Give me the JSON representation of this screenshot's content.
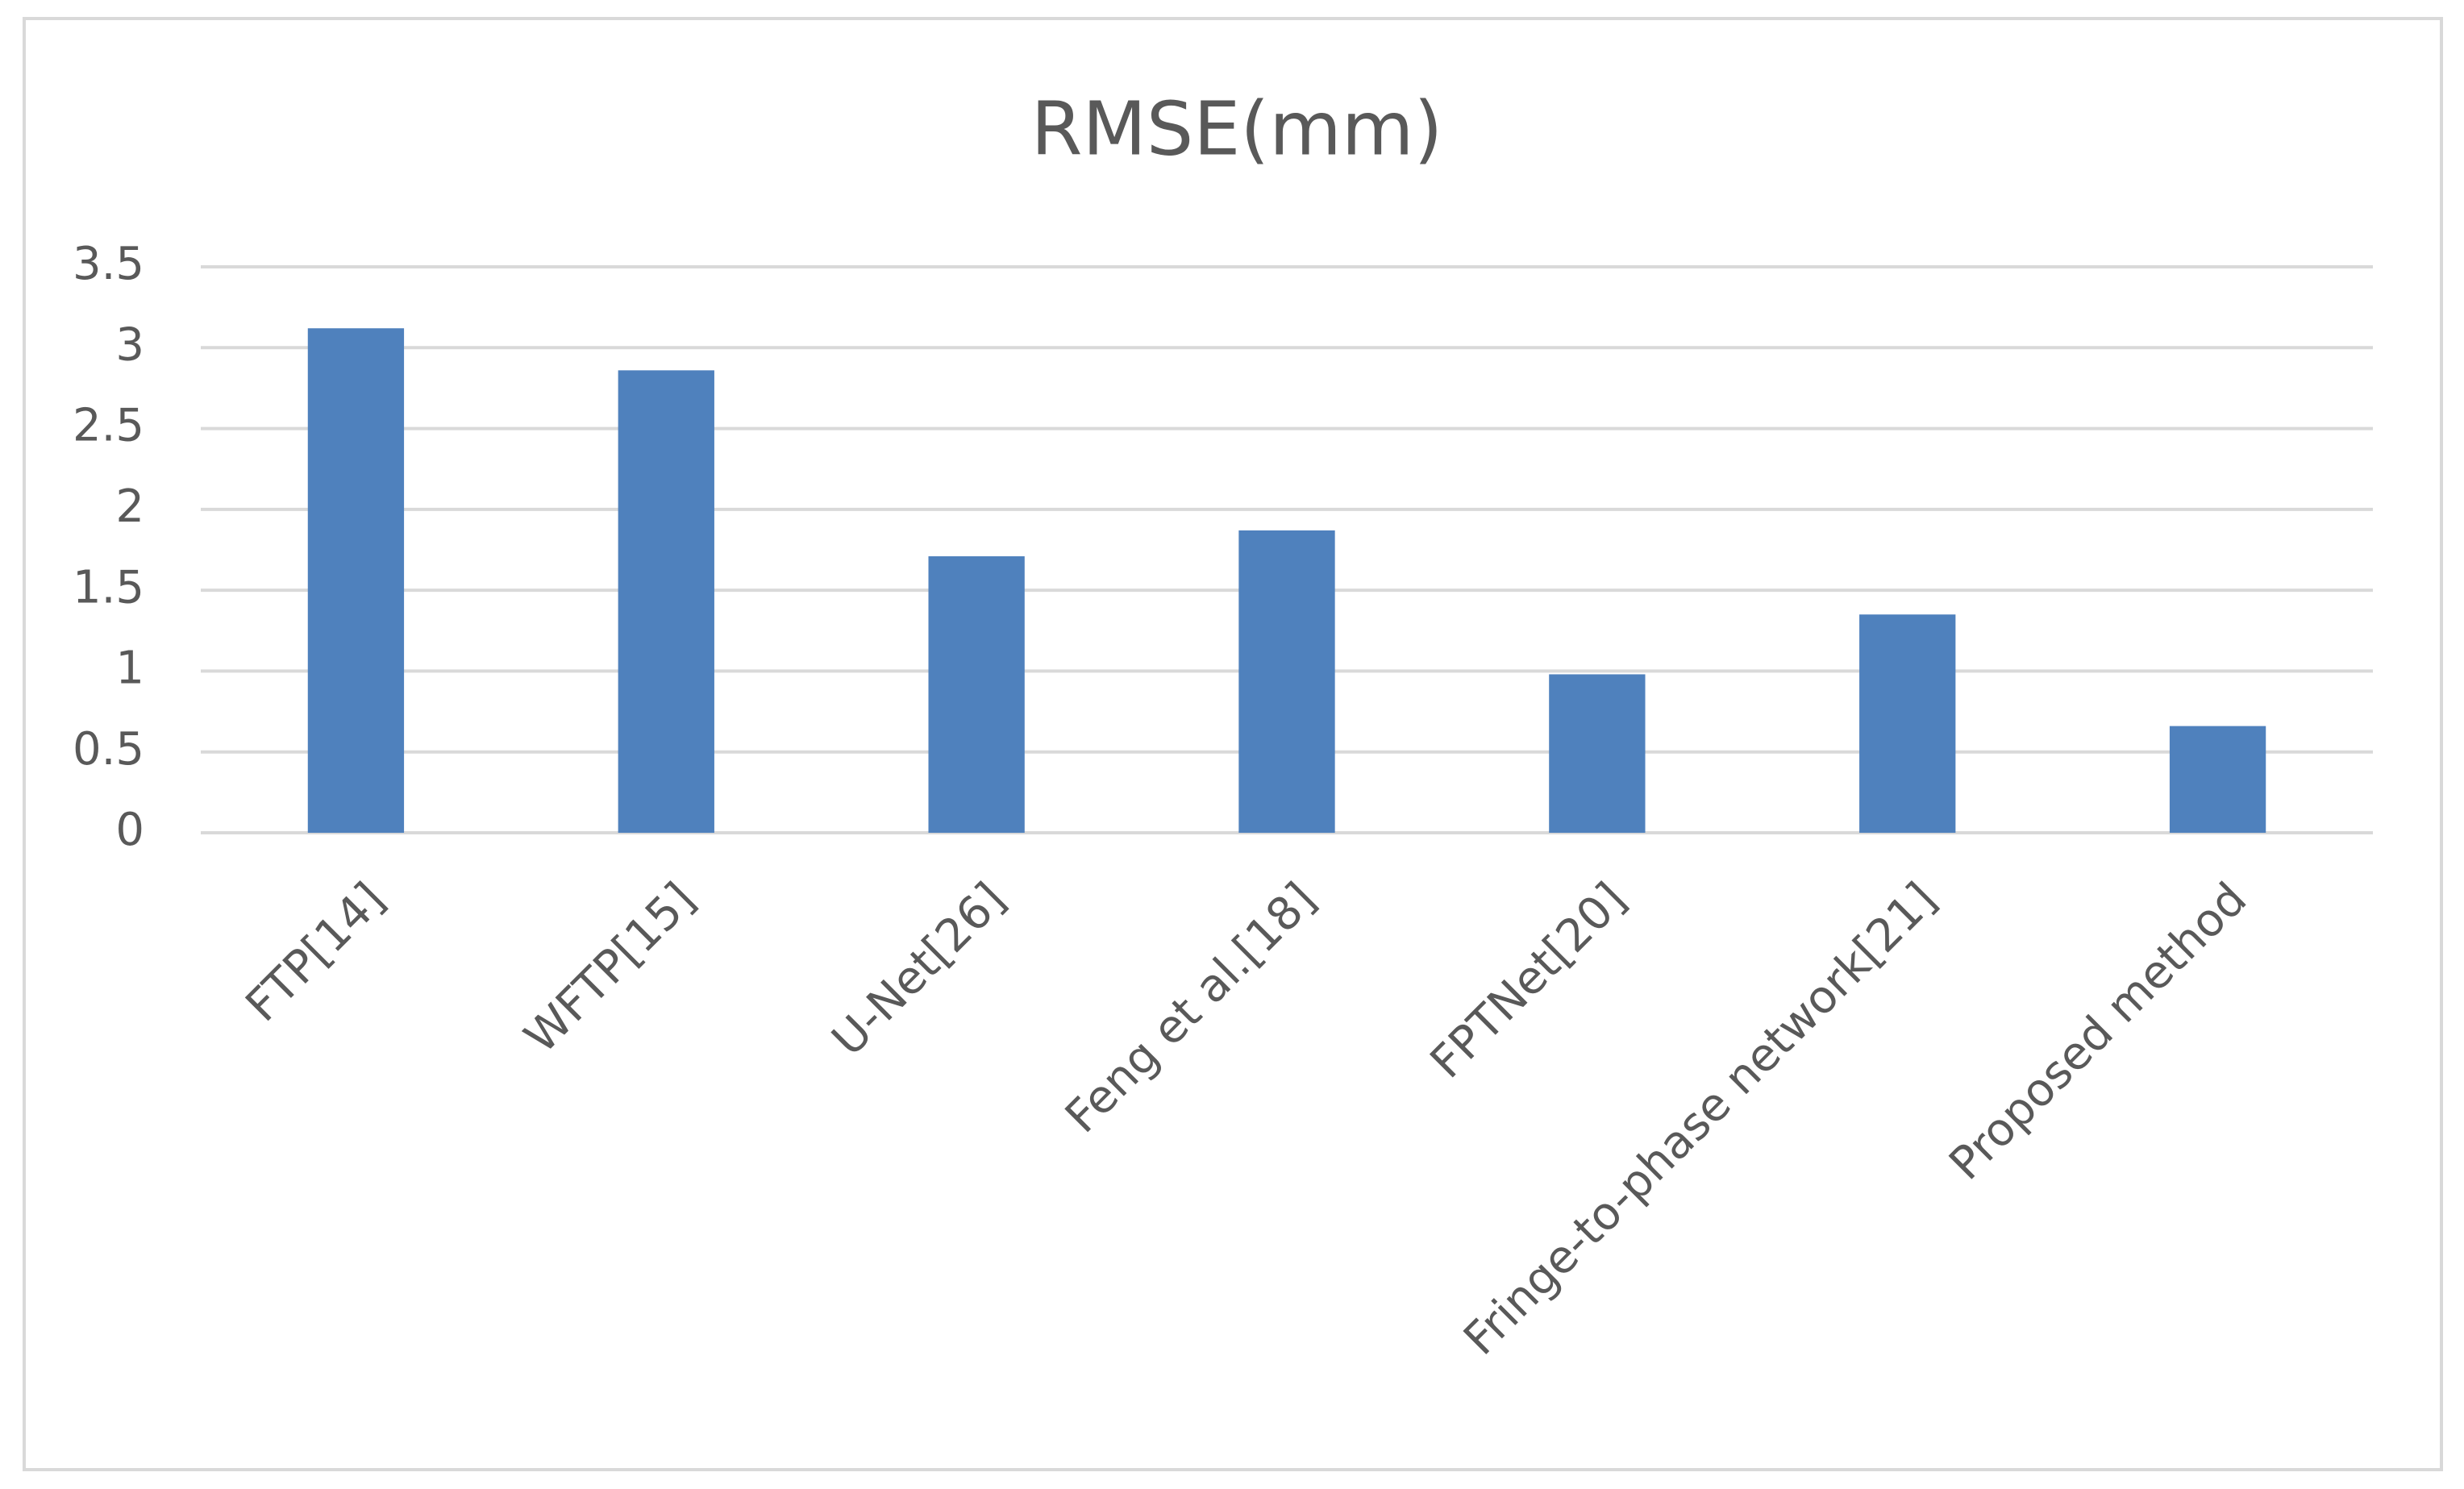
{
  "chart_data": {
    "type": "bar",
    "title": "RMSE(mm)",
    "categories": [
      "FTP[14]",
      "WFTP[15]",
      "U-Net[26]",
      "Feng et al.[18]",
      "FPTNet[20]",
      "Fringe-to-phase network[21]",
      "Proposed method"
    ],
    "values": [
      3.12,
      2.86,
      1.71,
      1.87,
      0.98,
      1.35,
      0.66
    ],
    "color": "#4f81bd",
    "ylim": [
      0,
      3.5
    ],
    "yticks": [
      0,
      0.5,
      1,
      1.5,
      2,
      2.5,
      3,
      3.5
    ],
    "grid": true
  }
}
